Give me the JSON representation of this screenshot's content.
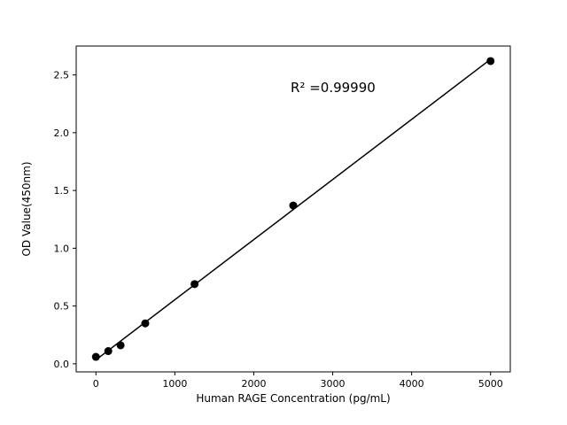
{
  "chart_data": {
    "type": "scatter",
    "title": "",
    "xlabel": "Human RAGE Concentration (pg/mL)",
    "ylabel": "OD Value(450nm)",
    "annotation": "R² =0.99990",
    "x": [
      0,
      156.25,
      312.5,
      625,
      1250,
      2500,
      5000
    ],
    "y": [
      0.06,
      0.11,
      0.16,
      0.35,
      0.69,
      1.37,
      2.62
    ],
    "fit": "linear",
    "xlim": [
      -250,
      5250
    ],
    "ylim": [
      -0.07,
      2.75
    ],
    "xticks": [
      0,
      1000,
      2000,
      3000,
      4000,
      5000
    ],
    "xtick_labels": [
      "0",
      "1000",
      "2000",
      "3000",
      "4000",
      "5000"
    ],
    "yticks": [
      0.0,
      0.5,
      1.0,
      1.5,
      2.0,
      2.5
    ],
    "ytick_labels": [
      "0.0",
      "0.5",
      "1.0",
      "1.5",
      "2.0",
      "2.5"
    ],
    "grid": false,
    "legend": "none",
    "marker_color": "#000000",
    "line_color": "#000000",
    "axis_color": "#000000",
    "background": "#ffffff"
  }
}
